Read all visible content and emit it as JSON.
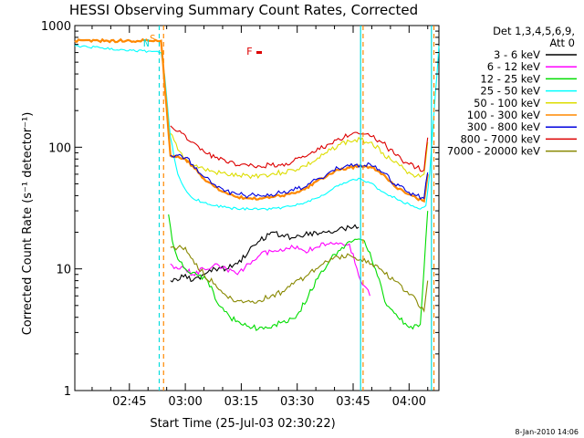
{
  "chart_data": {
    "type": "line",
    "title": "HESSI Observing Summary Count Rates, Corrected",
    "xlabel": "Start Time (25-Jul-03 02:30:22)",
    "ylabel": "Corrected Count Rate (s⁻¹ detector⁻¹)",
    "y_scale": "log",
    "ylim": [
      1,
      1000
    ],
    "xlim": [
      "02:30:22",
      "04:08:00"
    ],
    "x_ticks": [
      "02:45",
      "03:00",
      "03:15",
      "03:30",
      "03:45",
      "04:00"
    ],
    "y_ticks": [
      "1",
      "10",
      "100",
      "1000"
    ],
    "legend": {
      "placement": "right",
      "header": [
        "Det 1,3,4,5,6,9,",
        "Att 0"
      ]
    },
    "footer_date": "8-Jan-2010 14:06",
    "annotations": [
      {
        "text": "F",
        "color": "#dd0000"
      },
      {
        "text": "S",
        "color": "#ff8800"
      },
      {
        "text": "N",
        "color": "#00dddd"
      }
    ],
    "colors": {
      "background": "#ffffff",
      "axes": "#000000"
    },
    "series": [
      {
        "name": "3 - 6 keV",
        "color": "#000000",
        "x": [
          "02:56:00",
          "02:58:00",
          "03:00:00",
          "03:02:00",
          "03:05:00",
          "03:08:00",
          "03:11:00",
          "03:14:00",
          "03:17:00",
          "03:20:00",
          "03:23:00",
          "03:26:00",
          "03:29:00",
          "03:32:00",
          "03:35:00",
          "03:38:00",
          "03:41:00",
          "03:44:00",
          "03:46:30"
        ],
        "y": [
          8,
          8,
          9,
          8,
          9,
          10,
          10,
          11,
          14,
          17,
          20,
          19,
          18,
          19,
          20,
          20,
          21,
          22,
          22
        ]
      },
      {
        "name": "6 - 12 keV",
        "color": "#ff00ff",
        "x": [
          "02:56:00",
          "02:58:00",
          "03:00:00",
          "03:02:00",
          "03:05:00",
          "03:08:00",
          "03:11:00",
          "03:14:00",
          "03:17:00",
          "03:20:00",
          "03:23:00",
          "03:26:00",
          "03:29:00",
          "03:32:00",
          "03:35:00",
          "03:38:00",
          "03:41:00",
          "03:44:00",
          "03:47:00",
          "03:48:30",
          "03:49:30"
        ],
        "y": [
          11,
          10,
          10,
          9,
          10,
          11,
          10,
          9,
          11,
          13,
          14,
          14,
          15,
          14,
          15,
          16,
          16,
          16,
          8,
          7,
          6
        ]
      },
      {
        "name": "12 - 25 keV",
        "color": "#00dd00",
        "x": [
          "02:55:30",
          "02:56:30",
          "02:58:00",
          "03:00:00",
          "03:03:00",
          "03:06:00",
          "03:09:00",
          "03:12:00",
          "03:15:00",
          "03:18:00",
          "03:21:00",
          "03:24:00",
          "03:27:00",
          "03:30:00",
          "03:33:00",
          "03:36:00",
          "03:39:00",
          "03:42:00",
          "03:45:00",
          "03:48:00",
          "03:51:00",
          "03:54:00",
          "03:57:00",
          "04:00:00",
          "04:03:00",
          "04:04:00",
          "04:05:00"
        ],
        "y": [
          28,
          17,
          12,
          10,
          9,
          8,
          5,
          4,
          3.5,
          3.3,
          3.2,
          3.5,
          3.6,
          4.2,
          6,
          9,
          12,
          15,
          17,
          17,
          10,
          5,
          4,
          3.3,
          3.5,
          10,
          30
        ]
      },
      {
        "name": "25 - 50 keV",
        "color": "#00ffff",
        "x": [
          "02:30:22",
          "02:53:30",
          "02:54:30",
          "02:56:00",
          "02:58:00",
          "03:00:00",
          "03:02:00",
          "03:05:00",
          "03:08:00",
          "03:11:00",
          "03:14:00",
          "03:17:00",
          "03:20:00",
          "03:23:00",
          "03:26:00",
          "03:29:00",
          "03:32:00",
          "03:35:00",
          "03:38:00",
          "03:41:00",
          "03:44:00",
          "03:47:00",
          "03:49:00",
          "03:52:00",
          "03:55:00",
          "03:58:00",
          "04:01:00",
          "04:03:00",
          "04:04:30",
          "04:05:30",
          "04:08:00"
        ],
        "y": [
          680,
          600,
          380,
          120,
          60,
          45,
          38,
          35,
          33,
          32,
          31,
          31,
          31,
          31,
          32,
          33,
          35,
          38,
          42,
          48,
          53,
          55,
          52,
          45,
          40,
          36,
          33,
          31,
          33,
          60,
          680
        ]
      },
      {
        "name": "50 - 100 keV",
        "color": "#dddd00",
        "x": [
          "02:56:00",
          "02:58:00",
          "03:00:00",
          "03:02:00",
          "03:05:00",
          "03:08:00",
          "03:11:00",
          "03:14:00",
          "03:17:00",
          "03:20:00",
          "03:23:00",
          "03:26:00",
          "03:29:00",
          "03:32:00",
          "03:35:00",
          "03:38:00",
          "03:41:00",
          "03:44:00",
          "03:47:00",
          "03:50:00",
          "03:53:00",
          "03:56:00",
          "03:59:00",
          "04:02:00",
          "04:04:00",
          "04:05:00"
        ],
        "y": [
          130,
          95,
          80,
          72,
          66,
          62,
          60,
          58,
          58,
          59,
          60,
          62,
          65,
          70,
          78,
          90,
          105,
          112,
          115,
          110,
          90,
          75,
          65,
          58,
          60,
          110
        ]
      },
      {
        "name": "100 - 300 keV",
        "color": "#ff8800",
        "x": [
          "02:30:22",
          "02:53:30",
          "02:56:00",
          "02:58:00",
          "03:00:00",
          "03:02:00",
          "03:05:00",
          "03:08:00",
          "03:11:00",
          "03:14:00",
          "03:17:00",
          "03:20:00",
          "03:23:00",
          "03:26:00",
          "03:29:00",
          "03:32:00",
          "03:35:00",
          "03:38:00",
          "03:41:00",
          "03:44:00",
          "03:47:00",
          "03:50:00",
          "03:53:00",
          "03:56:00",
          "03:59:00",
          "04:02:00",
          "04:04:00",
          "04:05:00"
        ],
        "y": [
          750,
          750,
          85,
          84,
          80,
          70,
          55,
          47,
          42,
          39,
          38,
          38,
          39,
          40,
          42,
          45,
          52,
          58,
          65,
          68,
          70,
          68,
          60,
          48,
          42,
          38,
          36,
          60
        ]
      },
      {
        "name": "300 - 800 keV",
        "color": "#0000dd",
        "x": [
          "02:56:00",
          "02:58:00",
          "03:00:00",
          "03:02:00",
          "03:05:00",
          "03:08:00",
          "03:11:00",
          "03:14:00",
          "03:17:00",
          "03:20:00",
          "03:23:00",
          "03:26:00",
          "03:29:00",
          "03:32:00",
          "03:35:00",
          "03:38:00",
          "03:41:00",
          "03:44:00",
          "03:47:00",
          "03:50:00",
          "03:53:00",
          "03:56:00",
          "03:59:00",
          "04:02:00",
          "04:04:00",
          "04:05:00"
        ],
        "y": [
          86,
          86,
          82,
          72,
          57,
          49,
          44,
          41,
          40,
          40,
          41,
          42,
          44,
          47,
          54,
          60,
          67,
          70,
          72,
          70,
          62,
          50,
          44,
          40,
          38,
          62
        ]
      },
      {
        "name": "800 - 7000 keV",
        "color": "#dd0000",
        "x": [
          "02:56:00",
          "02:58:00",
          "03:00:00",
          "03:02:00",
          "03:05:00",
          "03:08:00",
          "03:11:00",
          "03:14:00",
          "03:17:00",
          "03:20:00",
          "03:23:00",
          "03:26:00",
          "03:29:00",
          "03:32:00",
          "03:35:00",
          "03:38:00",
          "03:41:00",
          "03:44:00",
          "03:47:00",
          "03:50:00",
          "03:53:00",
          "03:56:00",
          "03:59:00",
          "04:02:00",
          "04:04:00",
          "04:05:00"
        ],
        "y": [
          150,
          135,
          125,
          110,
          92,
          82,
          75,
          71,
          70,
          70,
          71,
          73,
          77,
          83,
          92,
          105,
          118,
          125,
          128,
          122,
          108,
          88,
          75,
          68,
          65,
          120
        ]
      },
      {
        "name": "7000 - 20000 keV",
        "color": "#888800",
        "x": [
          "02:56:00",
          "02:58:00",
          "03:00:00",
          "03:02:00",
          "03:05:00",
          "03:08:00",
          "03:11:00",
          "03:14:00",
          "03:17:00",
          "03:20:00",
          "03:23:00",
          "03:26:00",
          "03:29:00",
          "03:32:00",
          "03:35:00",
          "03:38:00",
          "03:41:00",
          "03:44:00",
          "03:47:00",
          "03:50:00",
          "03:53:00",
          "03:56:00",
          "03:59:00",
          "04:02:00",
          "04:04:00",
          "04:05:00"
        ],
        "y": [
          15,
          15,
          15,
          12,
          9,
          7.5,
          6,
          5.5,
          5.5,
          5.5,
          6,
          6.5,
          7.5,
          8.5,
          10,
          11.5,
          12.5,
          13,
          12,
          11,
          9.5,
          8,
          6.5,
          5.5,
          4.5,
          8
        ]
      }
    ]
  }
}
